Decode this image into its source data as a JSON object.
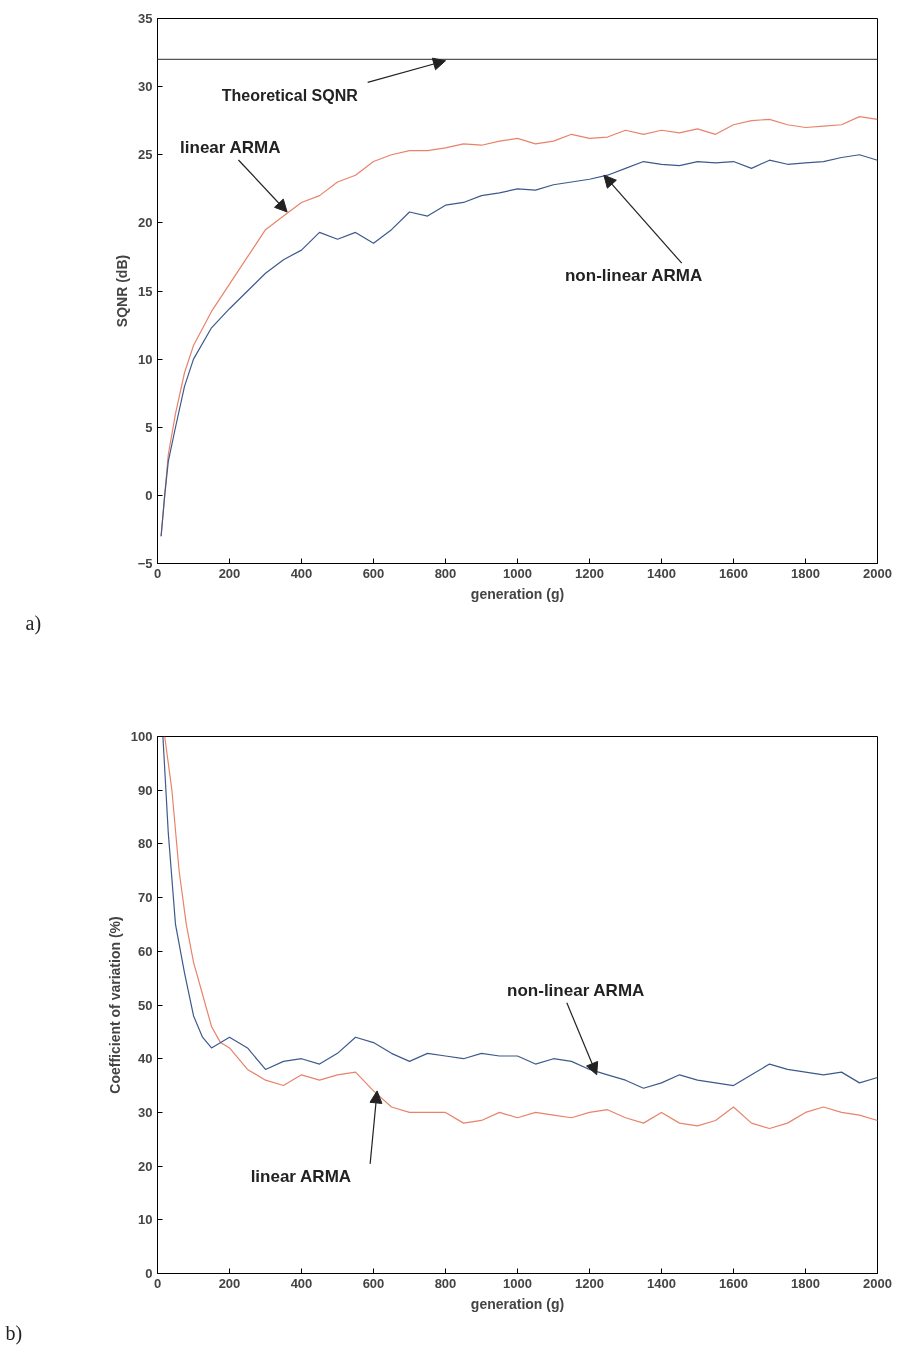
{
  "chart_data": [
    {
      "type": "line",
      "xlabel": "generation (g)",
      "ylabel": "SQNR (dB)",
      "xlim": [
        0,
        2000
      ],
      "ylim": [
        -5,
        35
      ],
      "xticks": [
        0,
        200,
        400,
        600,
        800,
        1000,
        1200,
        1400,
        1600,
        1800,
        2000
      ],
      "yticks": [
        -5,
        0,
        5,
        10,
        15,
        20,
        25,
        30,
        35
      ],
      "grid": false,
      "ref_lines": [
        {
          "axis": "y",
          "value": 32,
          "label": "Theoretical SQNR",
          "color": "#555555"
        }
      ],
      "annotations": [
        "a)",
        {
          "text": "linear ARMA",
          "x": 360,
          "y": 20.8
        },
        {
          "text": "non-linear ARMA",
          "x": 1240,
          "y": 23.5
        }
      ],
      "series": [
        {
          "color": "#e8836a",
          "x": [
            10,
            20,
            30,
            50,
            75,
            100,
            150,
            200,
            250,
            300,
            350,
            400,
            450,
            500,
            550,
            600,
            650,
            700,
            750,
            800,
            850,
            900,
            950,
            1000,
            1050,
            1100,
            1150,
            1200,
            1250,
            1300,
            1350,
            1400,
            1450,
            1500,
            1550,
            1600,
            1650,
            1700,
            1750,
            1800,
            1850,
            1900,
            1950,
            2000
          ],
          "values": [
            -3,
            0,
            3,
            6,
            9,
            11,
            13.5,
            15.5,
            17.5,
            19.5,
            20.5,
            21.5,
            22,
            23,
            23.5,
            24.5,
            25,
            25.3,
            25.3,
            25.5,
            25.8,
            25.7,
            26,
            26.2,
            25.8,
            26,
            26.5,
            26.2,
            26.3,
            26.8,
            26.5,
            26.8,
            26.6,
            26.9,
            26.5,
            27.2,
            27.5,
            27.6,
            27.2,
            27,
            27.1,
            27.2,
            27.8,
            27.6
          ]
        },
        {
          "color": "#3d5a8c",
          "x": [
            10,
            20,
            30,
            50,
            75,
            100,
            150,
            200,
            250,
            300,
            350,
            400,
            450,
            500,
            550,
            600,
            650,
            700,
            750,
            800,
            850,
            900,
            950,
            1000,
            1050,
            1100,
            1150,
            1200,
            1250,
            1300,
            1350,
            1400,
            1450,
            1500,
            1550,
            1600,
            1650,
            1700,
            1750,
            1800,
            1850,
            1900,
            1950,
            2000
          ],
          "values": [
            -3,
            0,
            2.5,
            5,
            8,
            10,
            12.3,
            13.7,
            15,
            16.3,
            17.3,
            18,
            19.3,
            18.8,
            19.3,
            18.5,
            19.5,
            20.8,
            20.5,
            21.3,
            21.5,
            22,
            22.2,
            22.5,
            22.4,
            22.8,
            23,
            23.2,
            23.5,
            24,
            24.5,
            24.3,
            24.2,
            24.5,
            24.4,
            24.5,
            24,
            24.6,
            24.3,
            24.4,
            24.5,
            24.8,
            25,
            24.6
          ]
        }
      ]
    },
    {
      "type": "line",
      "xlabel": "generation (g)",
      "ylabel": "Coefficient of variation (%)",
      "xlim": [
        0,
        2000
      ],
      "ylim": [
        0,
        100
      ],
      "xticks": [
        0,
        200,
        400,
        600,
        800,
        1000,
        1200,
        1400,
        1600,
        1800,
        2000
      ],
      "yticks": [
        0,
        10,
        20,
        30,
        40,
        50,
        60,
        70,
        80,
        90,
        100
      ],
      "grid": false,
      "annotations": [
        "b)",
        {
          "text": "non-linear ARMA",
          "x": 1220,
          "y": 37
        },
        {
          "text": "linear ARMA",
          "x": 610,
          "y": 34
        }
      ],
      "series": [
        {
          "color": "#e8836a",
          "x": [
            20,
            40,
            60,
            80,
            100,
            125,
            150,
            175,
            200,
            250,
            300,
            350,
            400,
            450,
            500,
            550,
            600,
            650,
            700,
            800,
            850,
            900,
            950,
            1000,
            1050,
            1100,
            1150,
            1200,
            1250,
            1300,
            1350,
            1400,
            1450,
            1500,
            1550,
            1600,
            1650,
            1700,
            1750,
            1800,
            1850,
            1900,
            1950,
            2000
          ],
          "values": [
            100,
            90,
            75,
            65,
            58,
            52,
            46,
            43,
            42,
            38,
            36,
            35,
            37,
            36,
            37,
            37.5,
            34,
            31,
            30,
            30,
            28,
            28.5,
            30,
            29,
            30,
            29.5,
            29,
            30,
            30.5,
            29,
            28,
            30,
            28,
            27.5,
            28.5,
            31,
            28,
            27,
            28,
            30,
            31,
            30,
            29.5,
            28.5
          ]
        },
        {
          "color": "#3d5a8c",
          "x": [
            15,
            30,
            50,
            75,
            100,
            125,
            150,
            200,
            250,
            300,
            350,
            400,
            450,
            500,
            550,
            600,
            650,
            700,
            750,
            800,
            850,
            900,
            950,
            1000,
            1050,
            1100,
            1150,
            1200,
            1250,
            1300,
            1350,
            1400,
            1450,
            1500,
            1550,
            1600,
            1650,
            1700,
            1750,
            1800,
            1850,
            1900,
            1950,
            2000
          ],
          "values": [
            100,
            82,
            65,
            56,
            48,
            44,
            42,
            44,
            42,
            38,
            39.5,
            40,
            39,
            41,
            44,
            43,
            41,
            39.5,
            41,
            40.5,
            40,
            41,
            40.5,
            40.5,
            39,
            40,
            39.5,
            38,
            37,
            36,
            34.5,
            35.5,
            37,
            36,
            35.5,
            35,
            37,
            39,
            38,
            37.5,
            37,
            37.5,
            35.5,
            36.5
          ]
        }
      ]
    }
  ]
}
